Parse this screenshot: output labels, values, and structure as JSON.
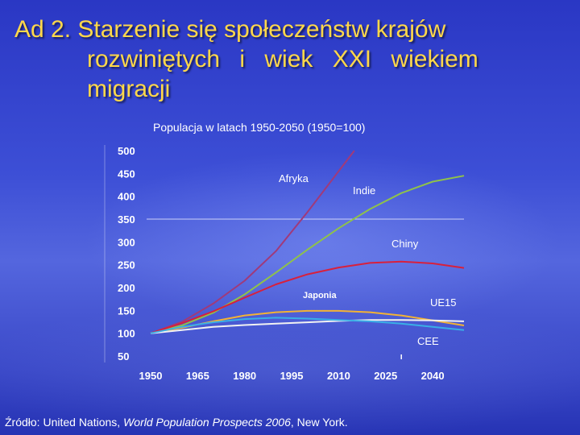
{
  "slide": {
    "title_lines": [
      "Ad 2. Starzenie się społeczeństw krajów",
      "rozwiniętych i wiek XXI wiekiem",
      "migracji"
    ],
    "source_prefix": "Źródło: United Nations, ",
    "source_italic": "World Population Prospects 2006",
    "source_suffix": ", New York."
  },
  "chart_data": {
    "type": "line",
    "title": "Populacja w latach 1950-2050 (1950=100)",
    "xlabel": "",
    "ylabel": "",
    "xlim": [
      1950,
      2050
    ],
    "ylim": [
      50,
      500
    ],
    "x_ticks": [
      1950,
      1965,
      1980,
      1995,
      2010,
      2025,
      2040
    ],
    "y_ticks": [
      500,
      450,
      400,
      350,
      300,
      250,
      200,
      150,
      100,
      50
    ],
    "reference_line": 350,
    "grid": false,
    "series": [
      {
        "name": "Afryka",
        "color": "#a03a7a",
        "x": [
          1950,
          1960,
          1970,
          1980,
          1990,
          2000,
          2005,
          2010,
          2015
        ],
        "y": [
          100,
          125,
          165,
          215,
          280,
          365,
          410,
          455,
          500
        ]
      },
      {
        "name": "Indie",
        "color": "#8fc24a",
        "x": [
          1950,
          1960,
          1970,
          1980,
          1990,
          2000,
          2010,
          2020,
          2030,
          2040,
          2050
        ],
        "y": [
          100,
          117,
          145,
          185,
          233,
          283,
          330,
          372,
          407,
          432,
          445
        ]
      },
      {
        "name": "Chiny",
        "color": "#d8203c",
        "x": [
          1950,
          1960,
          1970,
          1980,
          1990,
          2000,
          2010,
          2020,
          2030,
          2040,
          2050
        ],
        "y": [
          100,
          122,
          148,
          178,
          207,
          229,
          244,
          254,
          257,
          253,
          243
        ]
      },
      {
        "name": "Japonia",
        "color": "#f2b235",
        "x": [
          1950,
          1960,
          1970,
          1980,
          1990,
          2000,
          2010,
          2020,
          2030,
          2040,
          2050
        ],
        "y": [
          100,
          112,
          126,
          139,
          146,
          149,
          149,
          146,
          139,
          128,
          117
        ]
      },
      {
        "name": "UE15",
        "color": "#f2f2f2",
        "x": [
          1950,
          1960,
          1970,
          1980,
          1990,
          2000,
          2010,
          2020,
          2030,
          2040,
          2050
        ],
        "y": [
          100,
          107,
          114,
          118,
          121,
          124,
          127,
          129,
          129,
          128,
          126
        ]
      },
      {
        "name": "CEE",
        "color": "#3aaee6",
        "x": [
          1950,
          1960,
          1970,
          1980,
          1990,
          2000,
          2010,
          2020,
          2030,
          2040,
          2050
        ],
        "y": [
          100,
          114,
          124,
          131,
          134,
          132,
          129,
          126,
          121,
          114,
          107
        ]
      }
    ]
  }
}
